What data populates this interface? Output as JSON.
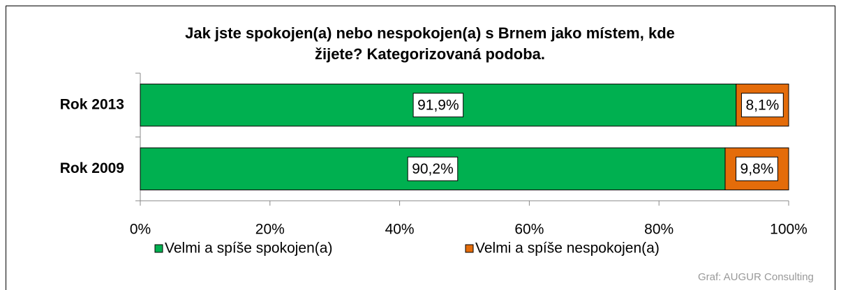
{
  "chart_data": {
    "type": "stacked-bar-horizontal",
    "title": [
      "Jak jste spokojen(a) nebo nespokojen(a) s Brnem jako místem, kde",
      "žijete? Kategorizovaná podoba."
    ],
    "categories": [
      "Rok 2013",
      "Rok 2009"
    ],
    "series": [
      {
        "name": "Velmi a spíše spokojen(a)",
        "color": "#00b050",
        "values": [
          91.9,
          90.2
        ],
        "value_labels": [
          "91,9%",
          "90,2%"
        ]
      },
      {
        "name": "Velmi a spíše nespokojen(a)",
        "color": "#e46c0a",
        "values": [
          8.1,
          9.8
        ],
        "value_labels": [
          "8,1%",
          "9,8%"
        ]
      }
    ],
    "xlim": [
      0,
      100
    ],
    "xticks": [
      {
        "value": 0,
        "label": "0%"
      },
      {
        "value": 20,
        "label": "20%"
      },
      {
        "value": 40,
        "label": "40%"
      },
      {
        "value": 60,
        "label": "60%"
      },
      {
        "value": 80,
        "label": "80%"
      },
      {
        "value": 100,
        "label": "100%"
      }
    ],
    "legend": "bottom",
    "source": "Graf: AUGUR Consulting"
  }
}
